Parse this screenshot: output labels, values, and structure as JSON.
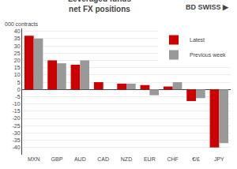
{
  "chart_data": {
    "type": "bar",
    "title": "Leveraged funds\nnet FX positions",
    "ylabel": "000 contracts",
    "annotations": [
      "BD",
      "SWISS",
      "▶"
    ],
    "categories": [
      "MXN",
      "GBP",
      "AUD",
      "CAD",
      "NZD",
      "EUR",
      "CHF",
      "€/£",
      "JPY"
    ],
    "series": [
      {
        "name": "Latest",
        "color": "#cc0000",
        "values": [
          37,
          20,
          17,
          5,
          4,
          3,
          2,
          -8,
          -40
        ]
      },
      {
        "name": "Previous week",
        "color": "#999999",
        "values": [
          35,
          18,
          20,
          0,
          4,
          -4,
          5,
          -6,
          -37
        ]
      }
    ],
    "ylim": [
      -45,
      42
    ],
    "yticks": [
      -40,
      -35,
      -30,
      -25,
      -20,
      -15,
      -10,
      -5,
      0,
      5,
      10,
      15,
      20,
      25,
      30,
      35,
      40
    ],
    "grid": true,
    "legend": "upper right"
  }
}
